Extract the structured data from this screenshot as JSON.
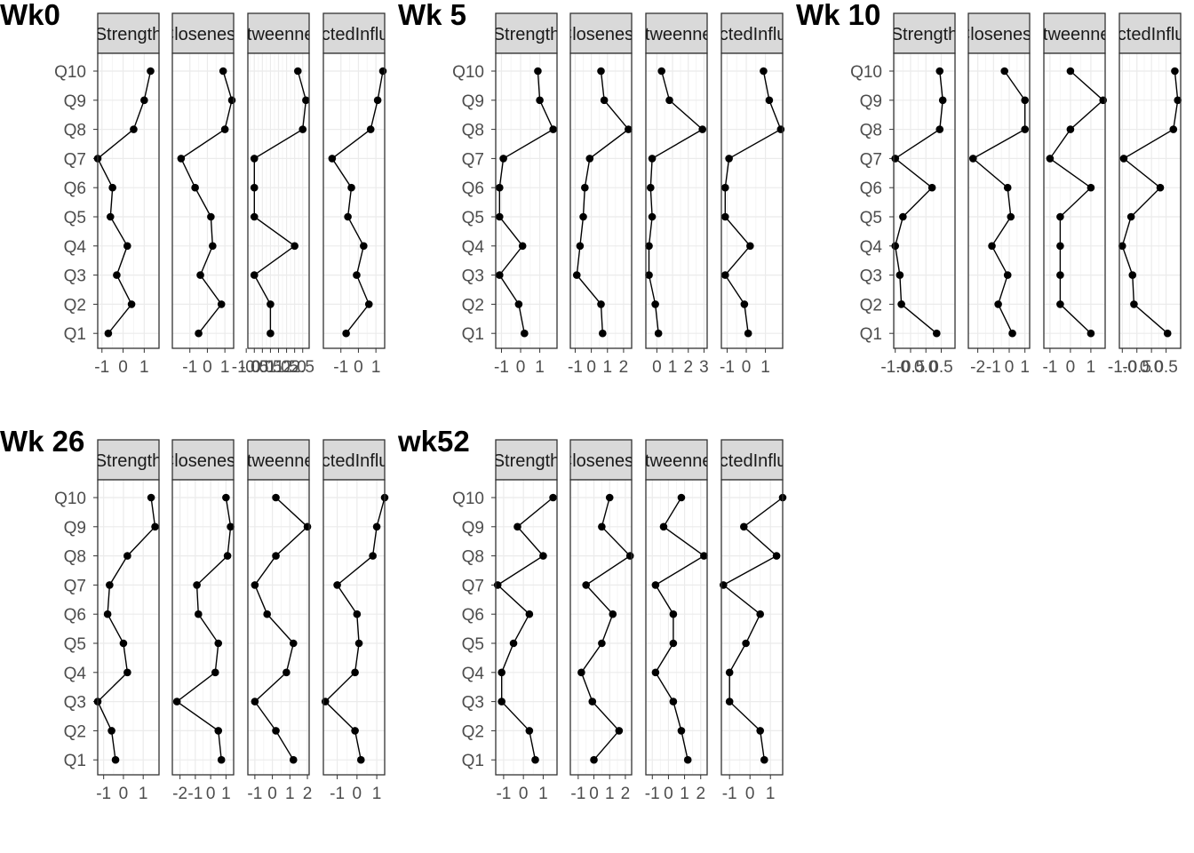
{
  "questions": [
    "Q1",
    "Q2",
    "Q3",
    "Q4",
    "Q5",
    "Q6",
    "Q7",
    "Q8",
    "Q9",
    "Q10"
  ],
  "measures": [
    "Strength",
    "Closeness",
    "Betweenness",
    "ExpectedInfluence"
  ],
  "colors": {
    "panel_bg": "#ffffff",
    "grid_major": "#ebebeb",
    "grid_minor": "#f5f5f5",
    "strip_bg": "#d9d9d9",
    "border": "#333333",
    "line": "#000000",
    "point": "#000000"
  },
  "chart_data": [
    {
      "title": "Wk0",
      "type": "line",
      "orientation": "horizontal-values-vertical-categories",
      "grid": true,
      "panels": [
        {
          "measure": "Strength",
          "xlim": [
            -1.2,
            1.7
          ],
          "xticks": [
            {
              "v": -1,
              "label": "-1"
            },
            {
              "v": 0,
              "label": "0"
            },
            {
              "v": 1,
              "label": "1"
            }
          ],
          "values": [
            -0.7,
            0.4,
            -0.3,
            0.2,
            -0.6,
            -0.5,
            -1.2,
            0.5,
            1.0,
            1.3
          ]
        },
        {
          "measure": "Closeness",
          "xlim": [
            -2.0,
            1.5
          ],
          "xticks": [
            {
              "v": -1,
              "label": "-1"
            },
            {
              "v": 0,
              "label": "0"
            },
            {
              "v": 1,
              "label": "1"
            }
          ],
          "values": [
            -0.5,
            0.8,
            -0.4,
            0.3,
            0.2,
            -0.7,
            -1.5,
            1.0,
            1.4,
            0.9
          ]
        },
        {
          "measure": "Betweenness",
          "xlim": [
            -0.9,
            2.9
          ],
          "xticks": [
            {
              "v": -1,
              "label": "-1.0"
            },
            {
              "v": -0.5,
              "label": "-0.5"
            },
            {
              "v": 0,
              "label": "0.0"
            },
            {
              "v": 0.5,
              "label": "0.5"
            },
            {
              "v": 1,
              "label": "1.0"
            },
            {
              "v": 1.5,
              "label": "1.5"
            },
            {
              "v": 2,
              "label": "2.0"
            },
            {
              "v": 2.5,
              "label": "2.5"
            }
          ],
          "values": [
            0.5,
            0.5,
            -0.5,
            2.0,
            -0.5,
            -0.5,
            -0.5,
            2.5,
            2.7,
            2.2
          ]
        },
        {
          "measure": "ExpectedInfluence",
          "xlim": [
            -2.0,
            1.5
          ],
          "xticks": [
            {
              "v": -1,
              "label": "-1"
            },
            {
              "v": 0,
              "label": "0"
            },
            {
              "v": 1,
              "label": "1"
            }
          ],
          "values": [
            -0.7,
            0.6,
            -0.1,
            0.3,
            -0.6,
            -0.4,
            -1.5,
            0.7,
            1.1,
            1.4
          ]
        }
      ]
    },
    {
      "title": "Wk 5",
      "type": "line",
      "orientation": "horizontal-values-vertical-categories",
      "grid": true,
      "panels": [
        {
          "measure": "Strength",
          "xlim": [
            -1.3,
            1.9
          ],
          "xticks": [
            {
              "v": -1,
              "label": "-1"
            },
            {
              "v": 0,
              "label": "0"
            },
            {
              "v": 1,
              "label": "1"
            }
          ],
          "values": [
            0.2,
            -0.1,
            -1.1,
            0.1,
            -1.1,
            -1.1,
            -0.9,
            1.7,
            1.0,
            0.9
          ]
        },
        {
          "measure": "Closeness",
          "xlim": [
            -1.3,
            2.5
          ],
          "xticks": [
            {
              "v": -1,
              "label": "-1"
            },
            {
              "v": 0,
              "label": "0"
            },
            {
              "v": 1,
              "label": "1"
            },
            {
              "v": 2,
              "label": "2"
            }
          ],
          "values": [
            0.7,
            0.6,
            -0.9,
            -0.7,
            -0.5,
            -0.4,
            -0.1,
            2.3,
            0.8,
            0.6
          ]
        },
        {
          "measure": "Betweenness",
          "xlim": [
            -0.7,
            3.2
          ],
          "xticks": [
            {
              "v": 0,
              "label": "0"
            },
            {
              "v": 1,
              "label": "1"
            },
            {
              "v": 2,
              "label": "2"
            },
            {
              "v": 3,
              "label": "3"
            }
          ],
          "values": [
            0.1,
            -0.1,
            -0.5,
            -0.5,
            -0.3,
            -0.4,
            -0.3,
            2.9,
            0.8,
            0.3
          ]
        },
        {
          "measure": "ExpectedInfluence",
          "xlim": [
            -1.3,
            1.9
          ],
          "xticks": [
            {
              "v": -1,
              "label": "-1"
            },
            {
              "v": 0,
              "label": "0"
            },
            {
              "v": 1,
              "label": "1"
            }
          ],
          "values": [
            0.1,
            -0.1,
            -1.1,
            0.2,
            -1.1,
            -1.1,
            -0.9,
            1.8,
            1.2,
            0.9
          ]
        }
      ]
    },
    {
      "title": "Wk 10",
      "type": "line",
      "orientation": "horizontal-values-vertical-categories",
      "grid": true,
      "panels": [
        {
          "measure": "Strength",
          "xlim": [
            -1.05,
            0.95
          ],
          "xticks": [
            {
              "v": -1,
              "label": "-1.0"
            },
            {
              "v": -0.5,
              "label": "-0.5"
            },
            {
              "v": 0,
              "label": "0.0"
            },
            {
              "v": 0.5,
              "label": "0.5"
            }
          ],
          "values": [
            0.35,
            -0.8,
            -0.85,
            -1.0,
            -0.75,
            0.2,
            -1.0,
            0.45,
            0.55,
            0.45
          ]
        },
        {
          "measure": "Closeness",
          "xlim": [
            -2.6,
            1.3
          ],
          "xticks": [
            {
              "v": -2,
              "label": "-2"
            },
            {
              "v": -1,
              "label": "-1"
            },
            {
              "v": 0,
              "label": "0"
            },
            {
              "v": 1,
              "label": "1"
            }
          ],
          "values": [
            0.2,
            -0.7,
            -0.1,
            -1.1,
            0.1,
            -0.1,
            -2.3,
            1.0,
            1.0,
            -0.3
          ]
        },
        {
          "measure": "Betweenness",
          "xlim": [
            -1.3,
            1.7
          ],
          "xticks": [
            {
              "v": -1,
              "label": "-1"
            },
            {
              "v": 0,
              "label": "0"
            },
            {
              "v": 1,
              "label": "1"
            }
          ],
          "values": [
            1.0,
            -0.5,
            -0.5,
            -0.5,
            -0.5,
            1.0,
            -1.0,
            0.0,
            1.6,
            0.0
          ]
        },
        {
          "measure": "ExpectedInfluence",
          "xlim": [
            -1.1,
            1.0
          ],
          "xticks": [
            {
              "v": -1,
              "label": "-1.0"
            },
            {
              "v": -0.5,
              "label": "-0.5"
            },
            {
              "v": 0,
              "label": "0.0"
            },
            {
              "v": 0.5,
              "label": "0.5"
            }
          ],
          "values": [
            0.55,
            -0.6,
            -0.65,
            -1.0,
            -0.7,
            0.3,
            -0.95,
            0.75,
            0.9,
            0.8
          ]
        }
      ]
    },
    {
      "title": "Wk 26",
      "type": "line",
      "orientation": "horizontal-values-vertical-categories",
      "grid": true,
      "panels": [
        {
          "measure": "Strength",
          "xlim": [
            -1.3,
            1.8
          ],
          "xticks": [
            {
              "v": -1,
              "label": "-1"
            },
            {
              "v": 0,
              "label": "0"
            },
            {
              "v": 1,
              "label": "1"
            }
          ],
          "values": [
            -0.4,
            -0.6,
            -1.3,
            0.2,
            0.0,
            -0.8,
            -0.7,
            0.2,
            1.6,
            1.4
          ]
        },
        {
          "measure": "Closeness",
          "xlim": [
            -2.5,
            1.5
          ],
          "xticks": [
            {
              "v": -2,
              "label": "-2"
            },
            {
              "v": -1,
              "label": "-1"
            },
            {
              "v": 0,
              "label": "0"
            },
            {
              "v": 1,
              "label": "1"
            }
          ],
          "values": [
            0.7,
            0.5,
            -2.2,
            0.3,
            0.5,
            -0.8,
            -0.9,
            1.1,
            1.3,
            1.0
          ]
        },
        {
          "measure": "Betweenness",
          "xlim": [
            -1.4,
            2.1
          ],
          "xticks": [
            {
              "v": -1,
              "label": "-1"
            },
            {
              "v": 0,
              "label": "0"
            },
            {
              "v": 1,
              "label": "1"
            },
            {
              "v": 2,
              "label": "2"
            }
          ],
          "values": [
            1.2,
            0.2,
            -1.0,
            0.8,
            1.2,
            -0.3,
            -1.0,
            0.2,
            2.0,
            0.2
          ]
        },
        {
          "measure": "ExpectedInfluence",
          "xlim": [
            -1.7,
            1.4
          ],
          "xticks": [
            {
              "v": -1,
              "label": "-1"
            },
            {
              "v": 0,
              "label": "0"
            },
            {
              "v": 1,
              "label": "1"
            }
          ],
          "values": [
            0.2,
            -0.1,
            -1.6,
            -0.1,
            0.1,
            0.0,
            -1.0,
            0.8,
            1.0,
            1.4
          ]
        }
      ]
    },
    {
      "title": "wk52",
      "type": "line",
      "orientation": "horizontal-values-vertical-categories",
      "grid": true,
      "panels": [
        {
          "measure": "Strength",
          "xlim": [
            -1.4,
            1.7
          ],
          "xticks": [
            {
              "v": -1,
              "label": "-1"
            },
            {
              "v": 0,
              "label": "0"
            },
            {
              "v": 1,
              "label": "1"
            }
          ],
          "values": [
            0.6,
            0.3,
            -1.1,
            -1.1,
            -0.5,
            0.3,
            -1.3,
            1.0,
            -0.3,
            1.5
          ]
        },
        {
          "measure": "Closeness",
          "xlim": [
            -1.5,
            2.4
          ],
          "xticks": [
            {
              "v": -1,
              "label": "-1"
            },
            {
              "v": 0,
              "label": "0"
            },
            {
              "v": 1,
              "label": "1"
            },
            {
              "v": 2,
              "label": "2"
            }
          ],
          "values": [
            0.0,
            1.6,
            -0.1,
            -0.8,
            0.5,
            1.2,
            -0.5,
            2.3,
            0.5,
            1.0
          ]
        },
        {
          "measure": "Betweenness",
          "xlim": [
            -1.4,
            2.4
          ],
          "xticks": [
            {
              "v": -1,
              "label": "-1"
            },
            {
              "v": 0,
              "label": "0"
            },
            {
              "v": 1,
              "label": "1"
            },
            {
              "v": 2,
              "label": "2"
            }
          ],
          "values": [
            1.2,
            0.8,
            0.3,
            -0.8,
            0.3,
            0.3,
            -0.8,
            2.2,
            -0.3,
            0.8
          ]
        },
        {
          "measure": "ExpectedInfluence",
          "xlim": [
            -1.4,
            1.6
          ],
          "xticks": [
            {
              "v": -1,
              "label": "-1"
            },
            {
              "v": 0,
              "label": "0"
            },
            {
              "v": 1,
              "label": "1"
            }
          ],
          "values": [
            0.7,
            0.5,
            -1.0,
            -1.0,
            -0.2,
            0.5,
            -1.3,
            1.3,
            -0.3,
            1.6
          ]
        }
      ]
    }
  ]
}
